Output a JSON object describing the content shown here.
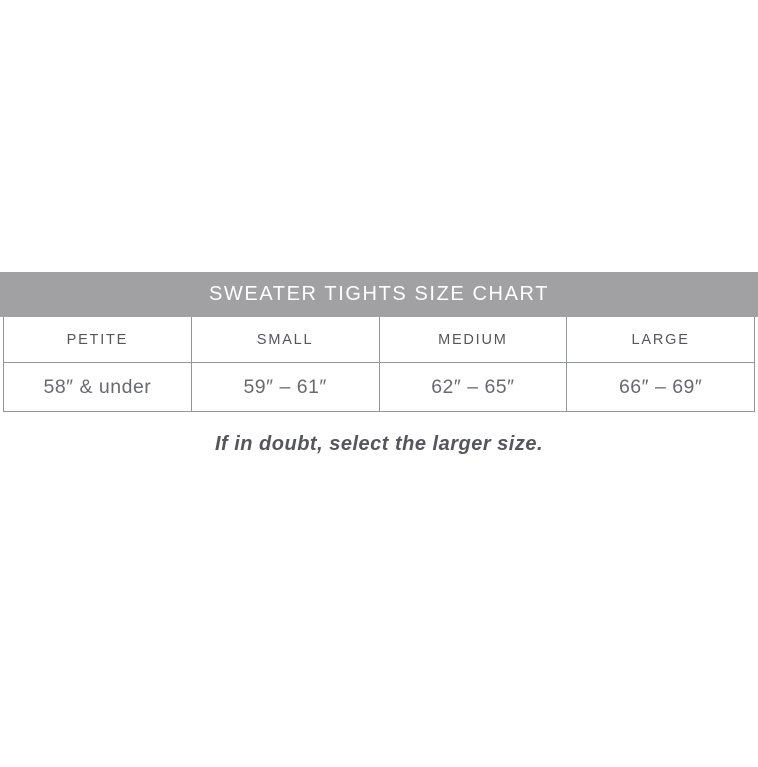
{
  "chart_data": {
    "type": "table",
    "title": "SWEATER TIGHTS SIZE CHART",
    "columns": [
      "PETITE",
      "SMALL",
      "MEDIUM",
      "LARGE"
    ],
    "rows": [
      [
        "58″ & under",
        "59″ – 61″",
        "62″ – 65″",
        "66″ – 69″"
      ]
    ],
    "note": "If in doubt, select the larger size.",
    "layout": {
      "columns_equal_width": true,
      "title_position": "top-bar"
    },
    "colors": {
      "title_bar_background": "#a1a1a3",
      "title_text": "#ffffff",
      "table_border": "#94979a",
      "header_text": "#55565a",
      "value_text": "#696a6e",
      "note_text": "#55565a",
      "page_background": "#ffffff"
    }
  }
}
